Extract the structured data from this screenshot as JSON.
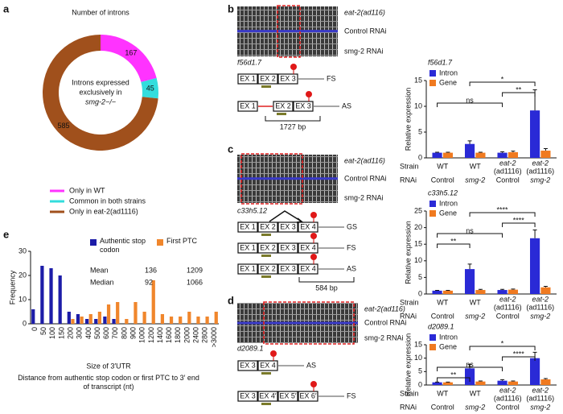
{
  "panel_labels": [
    "a",
    "b",
    "c",
    "d",
    "e"
  ],
  "chart_data": [
    {
      "type": "pie",
      "donut": true,
      "title": "Number of introns",
      "center_text": [
        "Introns expressed",
        "exclusively in",
        "smg-2−/−"
      ],
      "categories": [
        "Only in WT",
        "Common in both strains",
        "Only in eat-2(ad1116)"
      ],
      "values": [
        167,
        45,
        585
      ],
      "colors": [
        "#ff33ff",
        "#33dddd",
        "#a0501c"
      ]
    },
    {
      "type": "bar",
      "xlabel": "Size of 3′UTR",
      "ylabel": "Frequency",
      "caption": "Distance from authentic stop codon or first PTC to 3′ end of transcript (nt)",
      "categories": [
        "0",
        "50",
        "100",
        "150",
        "200",
        "300",
        "400",
        "500",
        "600",
        "700",
        "800",
        "900",
        "1000",
        "1200",
        "1400",
        "1600",
        "1800",
        "2000",
        "2400",
        "2800",
        ">3000"
      ],
      "series": [
        {
          "name": "Authentic stop codon",
          "color": "#1c1ca8",
          "values": [
            6,
            24,
            23,
            20,
            5,
            4,
            2,
            2,
            3,
            2,
            0,
            0,
            0,
            0,
            0,
            0,
            0,
            0,
            0,
            0,
            0
          ]
        },
        {
          "name": "First PTC",
          "color": "#f0862c",
          "values": [
            0,
            0,
            0,
            0,
            2,
            3,
            4,
            5,
            8,
            9,
            2,
            9,
            5,
            18,
            4,
            3,
            3,
            5,
            3,
            3,
            5
          ]
        }
      ],
      "stats": {
        "rows": [
          {
            "label": "Mean",
            "values": [
              136,
              1209
            ]
          },
          {
            "label": "Median",
            "values": [
              92,
              1066
            ]
          }
        ]
      },
      "ylim": [
        0,
        30
      ],
      "yticks": [
        0,
        10,
        20,
        30
      ]
    },
    {
      "type": "bar",
      "title": "f56d1.7",
      "ylabel": "Relative expression",
      "strain": {
        "label": "Strain",
        "categories": [
          [
            "WT"
          ],
          [
            "WT"
          ],
          [
            "eat-2",
            "(ad1116)"
          ],
          [
            "eat-2",
            "(ad1116)"
          ]
        ]
      },
      "rnai": {
        "label": "RNAi",
        "categories": [
          "Control",
          "smg-2",
          "Control",
          "smg-2"
        ],
        "color": "#2e8b2e"
      },
      "series": [
        {
          "name": "Intron",
          "color": "#2a2ad6",
          "values": [
            1,
            2.7,
            1,
            9.2
          ],
          "errors": [
            0.1,
            0.6,
            0.2,
            4.0
          ]
        },
        {
          "name": "Gene",
          "color": "#f07a20",
          "values": [
            1,
            1,
            1.1,
            1.4
          ],
          "errors": [
            0.1,
            0.1,
            0.2,
            0.4
          ]
        }
      ],
      "ylim": [
        0,
        15
      ],
      "yticks": [
        0,
        5,
        10,
        15
      ],
      "annotations": [
        "*",
        "**",
        "ns"
      ]
    },
    {
      "type": "bar",
      "title": "c33h5.12",
      "ylabel": "Relative expression",
      "strain": {
        "label": "Strain",
        "categories": [
          [
            "WT"
          ],
          [
            "WT"
          ],
          [
            "eat-2",
            "(ad1116)"
          ],
          [
            "eat-2",
            "(ad1116)"
          ]
        ]
      },
      "rnai": {
        "label": "RNAi",
        "categories": [
          "Control",
          "smg-2",
          "Control",
          "smg-2"
        ],
        "color": "#2e8b2e"
      },
      "series": [
        {
          "name": "Intron",
          "color": "#2a2ad6",
          "values": [
            1,
            7.5,
            1.2,
            16.8
          ],
          "errors": [
            0.1,
            1.5,
            0.2,
            2.5
          ]
        },
        {
          "name": "Gene",
          "color": "#f07a20",
          "values": [
            1,
            1.2,
            1.3,
            2
          ],
          "errors": [
            0.1,
            0.2,
            0.2,
            0.3
          ]
        }
      ],
      "ylim": [
        0,
        25
      ],
      "yticks": [
        0,
        5,
        10,
        15,
        20,
        25
      ],
      "annotations": [
        "****",
        "****",
        "ns",
        "**"
      ]
    },
    {
      "type": "bar",
      "title": "d2089.1",
      "ylabel": "Relative expression",
      "strain": {
        "label": "Strain",
        "categories": [
          [
            "WT"
          ],
          [
            "WT"
          ],
          [
            "eat-2",
            "(ad1116)"
          ],
          [
            "eat-2",
            "(ad1116)"
          ]
        ]
      },
      "rnai": {
        "label": "RNAi",
        "categories": [
          "Control",
          "smg-2",
          "Control",
          "smg-2"
        ],
        "color": "#2e8b2e"
      },
      "series": [
        {
          "name": "Intron",
          "color": "#2a2ad6",
          "values": [
            1,
            6.2,
            1.6,
            10
          ],
          "errors": [
            0.1,
            1.5,
            0.4,
            2.2
          ]
        },
        {
          "name": "Gene",
          "color": "#f07a20",
          "values": [
            1,
            1.3,
            1.3,
            2.1
          ],
          "errors": [
            0.1,
            0.2,
            0.2,
            0.3
          ]
        }
      ],
      "ylim": [
        0,
        15
      ],
      "yticks": [
        0,
        5,
        10,
        15
      ],
      "annotations": [
        "*",
        "****",
        "ns",
        "**"
      ]
    }
  ],
  "diagrams": [
    {
      "tracks": [
        "eat-2(ad116)",
        "Control RNAi",
        "smg-2 RNAi"
      ],
      "gene": "f56d1.7",
      "rows": [
        {
          "exons": [
            "EX 1",
            "EX 2",
            "EX 3"
          ],
          "label": "FS"
        },
        {
          "exons": [
            "EX 1",
            "EX 2",
            "EX 3"
          ],
          "label": "AS"
        }
      ],
      "span": "1727 bp"
    },
    {
      "tracks": [
        "eat-2(ad116)",
        "Control RNAi",
        "smg-2 RNAi"
      ],
      "gene": "c33h5.12",
      "rows": [
        {
          "exons": [
            "EX 1",
            "EX 2",
            "EX 3",
            "EX 4"
          ],
          "label": "GS"
        },
        {
          "exons": [
            "EX 1",
            "EX 2",
            "EX 3",
            "EX 4"
          ],
          "label": "FS"
        },
        {
          "exons": [
            "EX 1",
            "EX 2",
            "EX 3",
            "EX 4"
          ],
          "label": "AS"
        }
      ],
      "span": "584 bp"
    },
    {
      "tracks": [
        "eat-2(ad116)",
        "Control RNAi",
        "smg-2 RNAi"
      ],
      "gene": "d2089.1",
      "rows": [
        {
          "exons": [
            "EX 3",
            "EX 4"
          ],
          "label": "AS"
        },
        {
          "exons": [
            "EX 3",
            "EX 4′",
            "EX 5′",
            "EX 6′"
          ],
          "label": "FS"
        }
      ]
    }
  ]
}
